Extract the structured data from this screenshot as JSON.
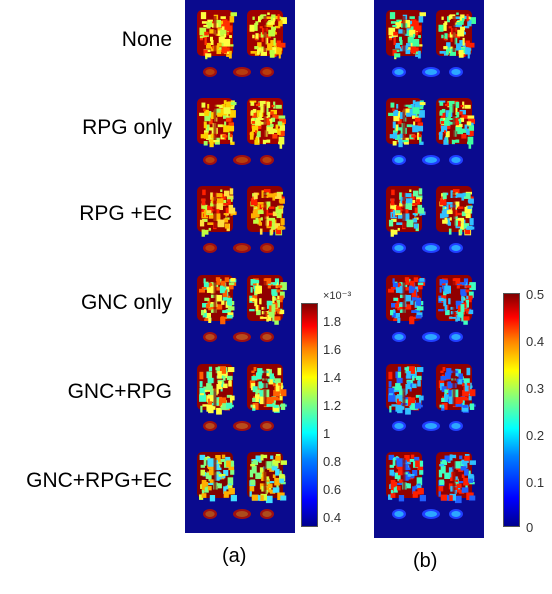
{
  "rows": [
    {
      "label": "None"
    },
    {
      "label": "RPG only"
    },
    {
      "label": "RPG +EC"
    },
    {
      "label": "GNC only"
    },
    {
      "label": "GNC+RPG"
    },
    {
      "label": "GNC+RPG+EC"
    }
  ],
  "colorbar_a": {
    "multiplier": "×10⁻³",
    "ticks": [
      "1.8",
      "1.6",
      "1.4",
      "1.2",
      "1",
      "0.8",
      "0.6",
      "0.4"
    ]
  },
  "colorbar_b": {
    "ticks": [
      "0.5",
      "0.4",
      "0.3",
      "0.2",
      "0.1",
      "0"
    ]
  },
  "captions": {
    "a": "(a)",
    "b": "(b)"
  },
  "colors": {
    "background_blue": "#0a0a8e",
    "colormap": "jet"
  }
}
